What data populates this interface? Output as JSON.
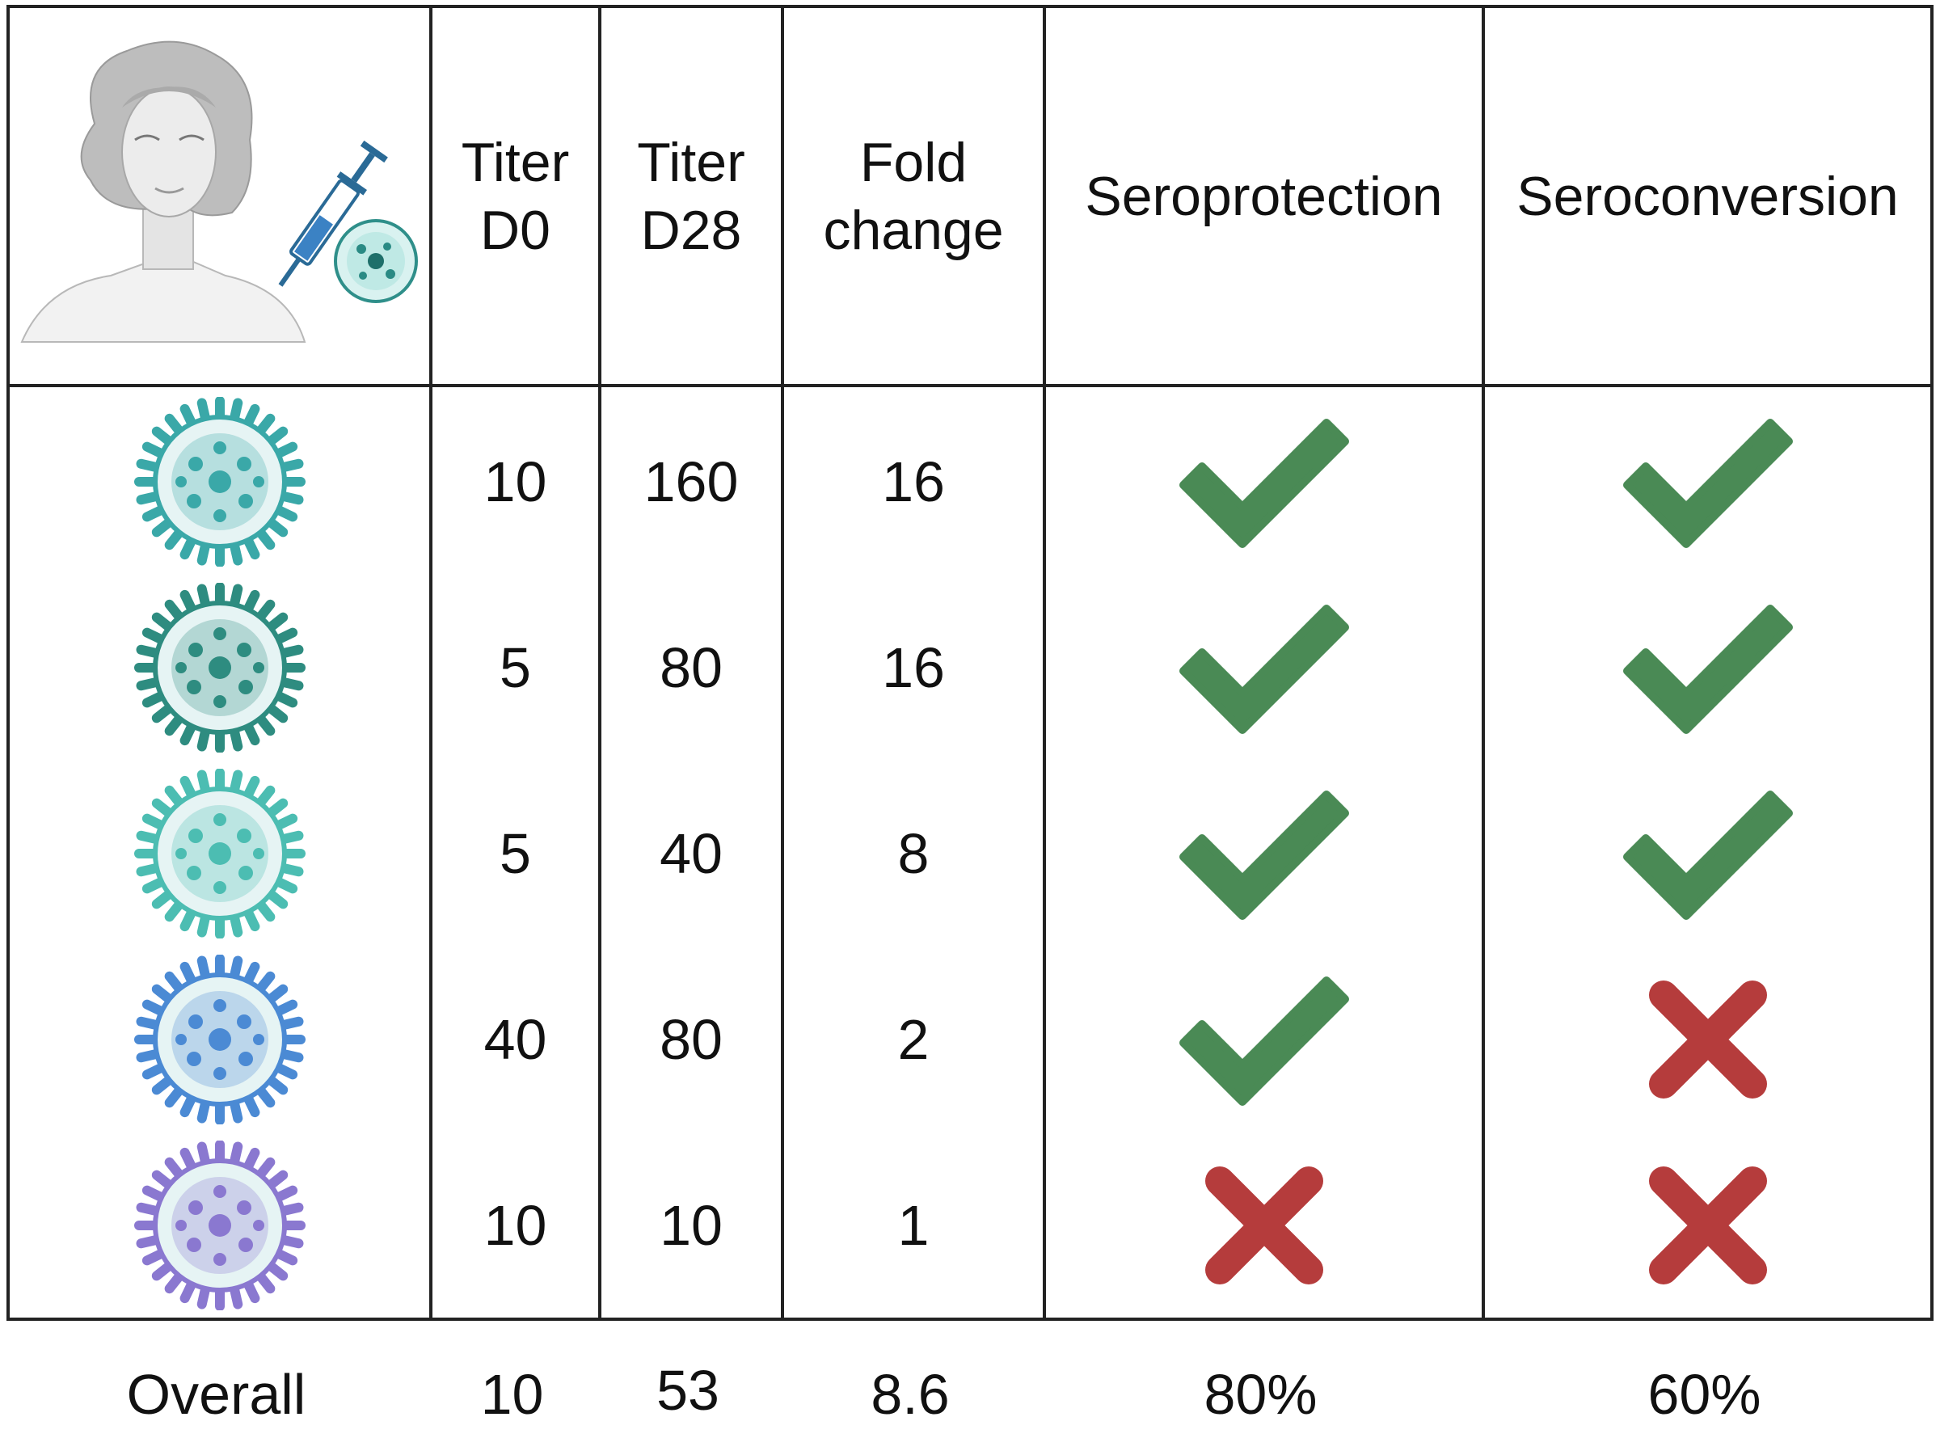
{
  "header": {
    "illustration_icons": [
      "person-portrait-icon",
      "syringe-icon",
      "virus-icon"
    ],
    "columns": [
      "Titer\nD0",
      "Titer\nD28",
      "Fold\nchange",
      "Seroprotection",
      "Seroconversion"
    ]
  },
  "rows": [
    {
      "virus_color": "#3aa8a8",
      "titer_d0": "10",
      "titer_d28": "160",
      "fold_change": "16",
      "seroprotection": true,
      "seroconversion": true
    },
    {
      "virus_color": "#2e8c80",
      "titer_d0": "5",
      "titer_d28": "80",
      "fold_change": "16",
      "seroprotection": true,
      "seroconversion": true
    },
    {
      "virus_color": "#4cbdb2",
      "titer_d0": "5",
      "titer_d28": "40",
      "fold_change": "8",
      "seroprotection": true,
      "seroconversion": true
    },
    {
      "virus_color": "#4b8ad4",
      "titer_d0": "40",
      "titer_d28": "80",
      "fold_change": "2",
      "seroprotection": true,
      "seroconversion": false
    },
    {
      "virus_color": "#8a78d0",
      "titer_d0": "10",
      "titer_d28": "10",
      "fold_change": "1",
      "seroprotection": false,
      "seroconversion": false
    }
  ],
  "footer": {
    "label": "Overall",
    "titer_d0": "10",
    "titer_d28": "53",
    "fold_change": "8.6",
    "seroprotection": "80%",
    "seroconversion": "60%"
  },
  "colors": {
    "check": "#4a8a55",
    "cross": "#b53c3c"
  }
}
